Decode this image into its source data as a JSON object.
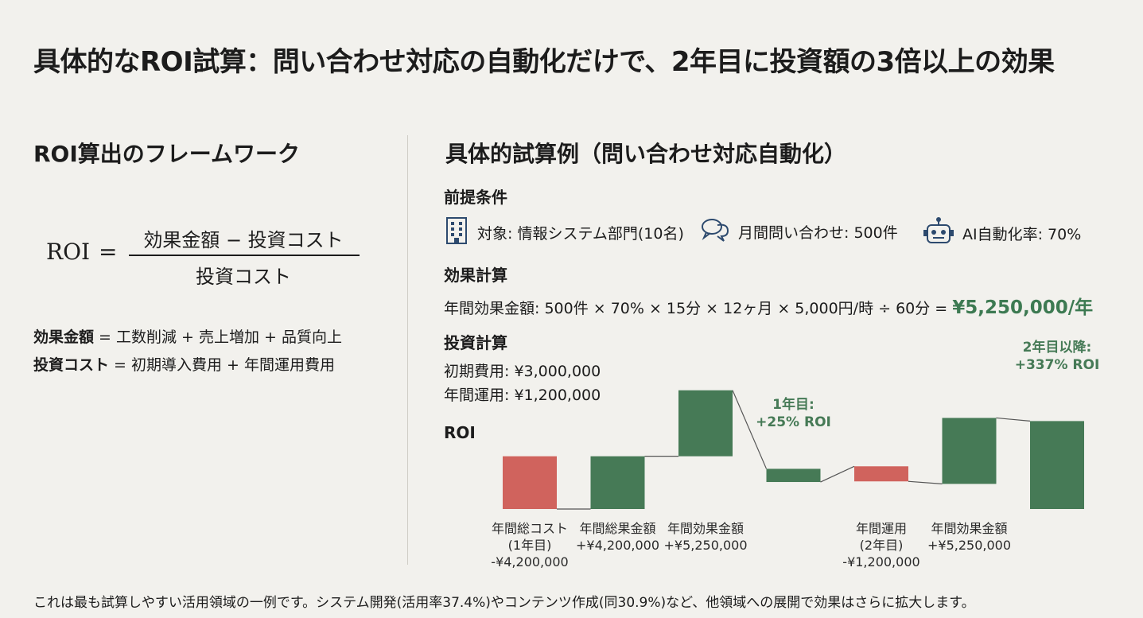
{
  "title": "具体的なROI試算：問い合わせ対応の自動化だけで、2年目に投資額の3倍以上の効果",
  "left": {
    "heading": "ROI算出のフレームワーク",
    "formula": {
      "lhs": "ROI",
      "eq": "=",
      "numerator": "効果金額 − 投資コスト",
      "denominator": "投資コスト"
    },
    "definitions": [
      {
        "term": "効果金額",
        "rest": " = 工数削減 + 売上増加 + 品質向上"
      },
      {
        "term": "投資コスト",
        "rest": " = 初期導入費用 + 年間運用費用"
      }
    ]
  },
  "right": {
    "heading": "具体的試算例（問い合わせ対応自動化）",
    "premise": {
      "heading": "前提条件",
      "items": [
        {
          "icon": "building-icon",
          "text": "対象: 情報システム部門(10名)"
        },
        {
          "icon": "chat-bubbles-icon",
          "text": "月間問い合わせ: 500件"
        },
        {
          "icon": "robot-icon",
          "text": "AI自動化率: 70%"
        }
      ]
    },
    "effect": {
      "heading": "効果計算",
      "formula": "年間効果金額: 500件 × 70% × 15分 × 12ヶ月 × 5,000円/時 ÷ 60分 = ",
      "result": "¥5,250,000/年"
    },
    "investment": {
      "heading": "投資計算",
      "initial": "初期費用: ¥3,000,000",
      "annual": "年間運用: ¥1,200,000"
    }
  },
  "chart_data": {
    "type": "waterfall",
    "title": "ROI",
    "unit": "JPY",
    "steps": [
      {
        "label_lines": [
          "年間総コスト",
          "(1年目)",
          "-¥4,200,000"
        ],
        "value": -4200000,
        "kind": "negative"
      },
      {
        "label_lines": [
          "年間総果金額",
          "+¥4,200,000"
        ],
        "value": 4200000,
        "kind": "positive"
      },
      {
        "label_lines": [
          "年間効果金額",
          "+¥5,250,000"
        ],
        "value": 5250000,
        "kind": "positive"
      },
      {
        "label_lines": [],
        "value": 1050000,
        "kind": "positive",
        "annotation": [
          "1年目:",
          "+25% ROI"
        ]
      },
      {
        "label_lines": [
          "年間運用",
          "(2年目)",
          "-¥1,200,000"
        ],
        "value": -1200000,
        "kind": "negative"
      },
      {
        "label_lines": [
          "年間効果金額",
          "+¥5,250,000"
        ],
        "value": 5250000,
        "kind": "positive"
      },
      {
        "label_lines": [],
        "value": 7000000,
        "kind": "positive",
        "annotation": [
          "2年目以降:",
          "+337% ROI"
        ]
      }
    ],
    "colors": {
      "positive": "#467a56",
      "negative": "#d0635d",
      "annotation": "#467a56",
      "connector": "#555555"
    }
  },
  "footnote": "これは最も試算しやすい活用領域の一例です。システム開発(活用率37.4%)やコンテンツ作成(同30.9%)など、他領域への展開で効果はさらに拡大します。"
}
